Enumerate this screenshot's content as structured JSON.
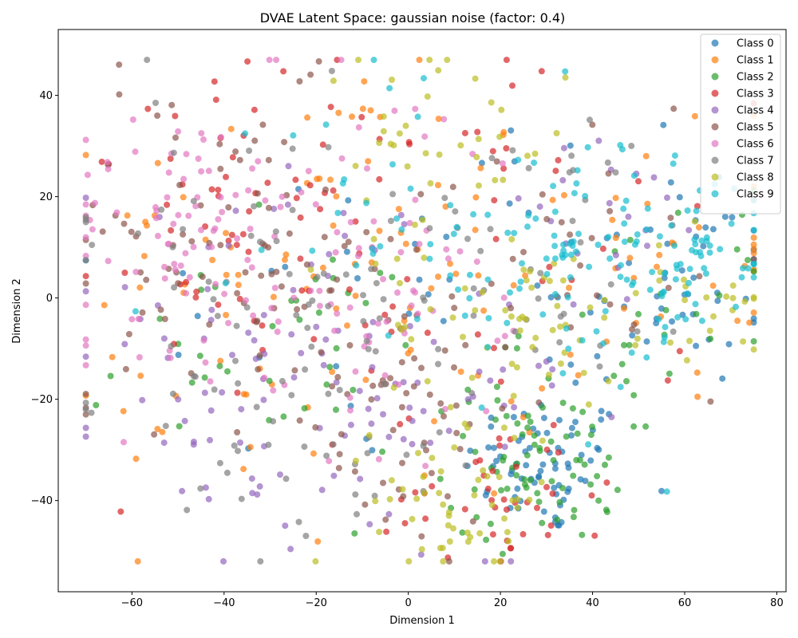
{
  "chart_data": {
    "type": "scatter",
    "title": "DVAE Latent Space: gaussian noise (factor: 0.4)",
    "xlabel": "Dimension 1",
    "ylabel": "Dimension 2",
    "xlim": [
      -76,
      82
    ],
    "ylim": [
      -58,
      53
    ],
    "xticks": [
      -60,
      -40,
      -20,
      0,
      20,
      40,
      60,
      80
    ],
    "yticks": [
      -40,
      -20,
      0,
      20,
      40
    ],
    "grid": false,
    "legend_position": "top-right",
    "point_alpha": 0.7,
    "series": [
      {
        "name": "Class 0",
        "color": "#1f77b4",
        "clusters": [
          {
            "cx": 30,
            "cy": -33,
            "sx": 9,
            "sy": 7,
            "n": 70
          },
          {
            "cx": 58,
            "cy": 5,
            "sx": 14,
            "sy": 12,
            "n": 50
          },
          {
            "cx": 5,
            "cy": 0,
            "sx": 35,
            "sy": 25,
            "n": 40
          }
        ]
      },
      {
        "name": "Class 1",
        "color": "#ff7f0e",
        "clusters": [
          {
            "cx": -20,
            "cy": 10,
            "sx": 25,
            "sy": 18,
            "n": 70
          },
          {
            "cx": 50,
            "cy": 8,
            "sx": 20,
            "sy": 12,
            "n": 40
          },
          {
            "cx": 0,
            "cy": -20,
            "sx": 30,
            "sy": 18,
            "n": 30
          }
        ]
      },
      {
        "name": "Class 2",
        "color": "#2ca02c",
        "clusters": [
          {
            "cx": 28,
            "cy": -32,
            "sx": 10,
            "sy": 8,
            "n": 70
          },
          {
            "cx": -30,
            "cy": -12,
            "sx": 20,
            "sy": 12,
            "n": 40
          },
          {
            "cx": 55,
            "cy": -5,
            "sx": 15,
            "sy": 12,
            "n": 30
          }
        ]
      },
      {
        "name": "Class 3",
        "color": "#d62728",
        "clusters": [
          {
            "cx": -25,
            "cy": 15,
            "sx": 25,
            "sy": 15,
            "n": 60
          },
          {
            "cx": 20,
            "cy": -38,
            "sx": 12,
            "sy": 8,
            "n": 40
          },
          {
            "cx": 0,
            "cy": 5,
            "sx": 30,
            "sy": 25,
            "n": 40
          }
        ]
      },
      {
        "name": "Class 4",
        "color": "#9467bd",
        "clusters": [
          {
            "cx": -30,
            "cy": -10,
            "sx": 20,
            "sy": 18,
            "n": 70
          },
          {
            "cx": -5,
            "cy": -25,
            "sx": 20,
            "sy": 15,
            "n": 50
          },
          {
            "cx": 40,
            "cy": 15,
            "sx": 15,
            "sy": 10,
            "n": 20
          }
        ]
      },
      {
        "name": "Class 5",
        "color": "#8c564b",
        "clusters": [
          {
            "cx": -40,
            "cy": 10,
            "sx": 22,
            "sy": 15,
            "n": 80
          },
          {
            "cx": -5,
            "cy": -20,
            "sx": 15,
            "sy": 15,
            "n": 60
          },
          {
            "cx": 40,
            "cy": 10,
            "sx": 20,
            "sy": 15,
            "n": 30
          }
        ]
      },
      {
        "name": "Class 6",
        "color": "#e377c2",
        "clusters": [
          {
            "cx": -50,
            "cy": 18,
            "sx": 12,
            "sy": 10,
            "n": 60
          },
          {
            "cx": -25,
            "cy": -5,
            "sx": 20,
            "sy": 15,
            "n": 60
          },
          {
            "cx": -5,
            "cy": 10,
            "sx": 20,
            "sy": 20,
            "n": 40
          }
        ]
      },
      {
        "name": "Class 7",
        "color": "#7f7f7f",
        "clusters": [
          {
            "cx": -20,
            "cy": -20,
            "sx": 20,
            "sy": 15,
            "n": 60
          },
          {
            "cx": 25,
            "cy": 10,
            "sx": 20,
            "sy": 15,
            "n": 50
          },
          {
            "cx": -45,
            "cy": 15,
            "sx": 20,
            "sy": 15,
            "n": 30
          }
        ]
      },
      {
        "name": "Class 8",
        "color": "#bcbd22",
        "clusters": [
          {
            "cx": 25,
            "cy": -5,
            "sx": 15,
            "sy": 10,
            "n": 60
          },
          {
            "cx": 12,
            "cy": -40,
            "sx": 10,
            "sy": 8,
            "n": 50
          },
          {
            "cx": 5,
            "cy": 30,
            "sx": 15,
            "sy": 10,
            "n": 40
          },
          {
            "cx": 65,
            "cy": 0,
            "sx": 8,
            "sy": 8,
            "n": 20
          }
        ]
      },
      {
        "name": "Class 9",
        "color": "#17becf",
        "clusters": [
          {
            "cx": 55,
            "cy": 8,
            "sx": 15,
            "sy": 8,
            "n": 90
          },
          {
            "cx": 25,
            "cy": 5,
            "sx": 15,
            "sy": 15,
            "n": 50
          },
          {
            "cx": 0,
            "cy": 25,
            "sx": 20,
            "sy": 15,
            "n": 30
          }
        ]
      }
    ]
  }
}
